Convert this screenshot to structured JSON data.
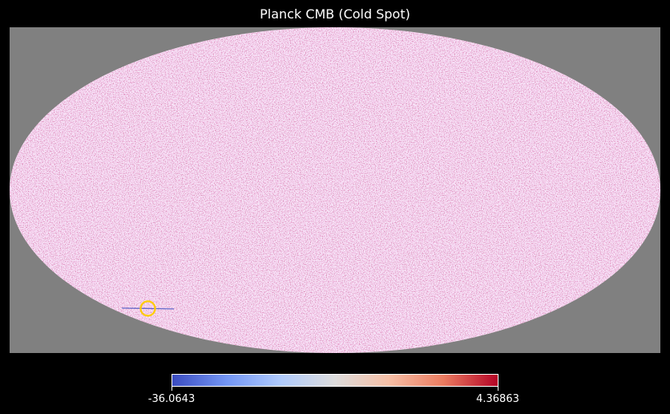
{
  "title": "Planck CMB (Cold Spot)",
  "map": {
    "projection": "mollweide",
    "background_color": "#808080",
    "colormap": "coolwarm",
    "cold_spot_marker_color": "#ffcc00"
  },
  "colorbar": {
    "min_label": "-36.0643",
    "max_label": "4.36863",
    "colors": [
      "#3b4cc0",
      "#7396f5",
      "#b0cbfc",
      "#dddcdc",
      "#f6bfa6",
      "#ea7b60",
      "#b40426"
    ]
  }
}
